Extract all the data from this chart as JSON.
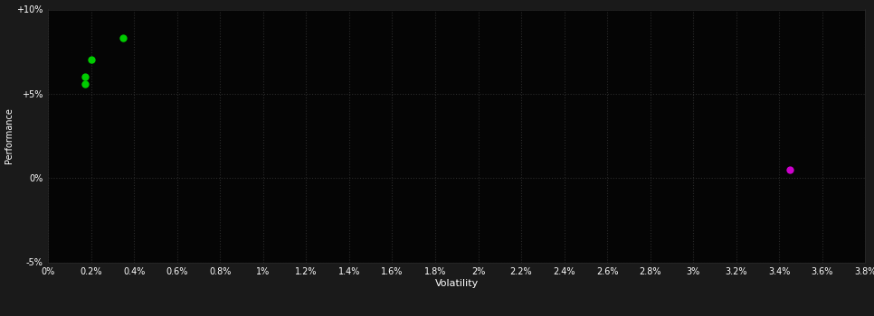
{
  "background_color": "#1a1a1a",
  "plot_bg_color": "#050505",
  "grid_color": "#2a2a2a",
  "text_color": "#ffffff",
  "green_points": [
    [
      0.35,
      8.3
    ],
    [
      0.2,
      7.0
    ],
    [
      0.17,
      6.0
    ],
    [
      0.17,
      5.6
    ]
  ],
  "magenta_points": [
    [
      3.45,
      0.5
    ]
  ],
  "green_color": "#00cc00",
  "magenta_color": "#cc00cc",
  "xlim": [
    0,
    3.8
  ],
  "ylim": [
    -5,
    10
  ],
  "xticks": [
    0,
    0.2,
    0.4,
    0.6,
    0.8,
    1.0,
    1.2,
    1.4,
    1.6,
    1.8,
    2.0,
    2.2,
    2.4,
    2.6,
    2.8,
    3.0,
    3.2,
    3.4,
    3.6,
    3.8
  ],
  "xtick_labels": [
    "0%",
    "0.2%",
    "0.4%",
    "0.6%",
    "0.8%",
    "1%",
    "1.2%",
    "1.4%",
    "1.6%",
    "1.8%",
    "2%",
    "2.2%",
    "2.4%",
    "2.6%",
    "2.8%",
    "3%",
    "3.2%",
    "3.4%",
    "3.6%",
    "3.8%"
  ],
  "yticks": [
    -5,
    0,
    5,
    10
  ],
  "ytick_labels": [
    "-5%",
    "0%",
    "+5%",
    "+10%"
  ],
  "xlabel": "Volatility",
  "ylabel": "Performance",
  "marker_size": 6
}
